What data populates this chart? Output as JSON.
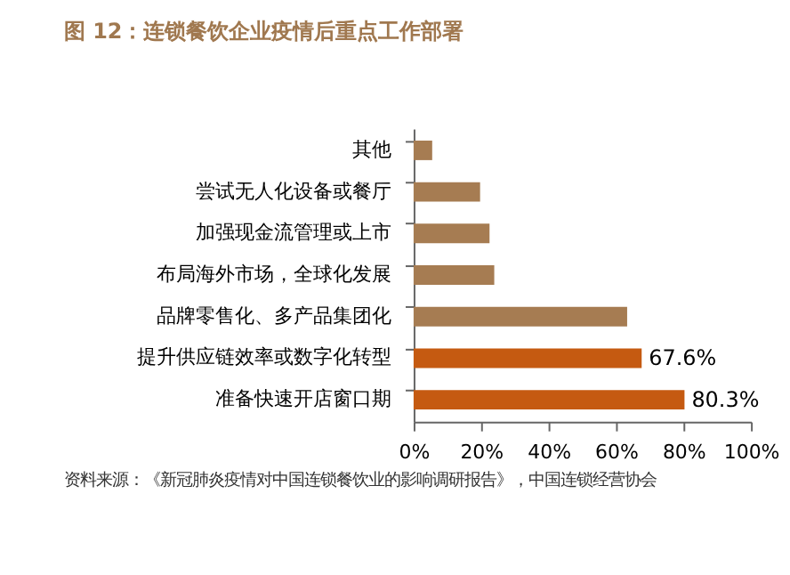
{
  "chart_data": {
    "type": "bar",
    "orientation": "horizontal",
    "title": "图 12：连锁餐饮企业疫情后重点工作部署",
    "categories": [
      "其他",
      "尝试无人化设备或餐厅",
      "加强现金流管理或上市",
      "布局海外市场，全球化发展",
      "品牌零售化、多产品集团化",
      "提升供应链效率或数字化转型",
      "准备快速开店窗口期"
    ],
    "values": [
      5.5,
      19.7,
      22.5,
      23.9,
      63.3,
      67.6,
      80.3
    ],
    "colors": [
      "#a67c52",
      "#a67c52",
      "#a67c52",
      "#a67c52",
      "#a67c52",
      "#c55a11",
      "#c55a11"
    ],
    "value_labels": [
      null,
      null,
      null,
      null,
      null,
      "67.6%",
      "80.3%"
    ],
    "xlim": [
      0,
      100
    ],
    "xticks": [
      {
        "value": 0,
        "label": "0%"
      },
      {
        "value": 20,
        "label": "20%"
      },
      {
        "value": 40,
        "label": "40%"
      },
      {
        "value": 60,
        "label": "60%"
      },
      {
        "value": 80,
        "label": "80%"
      },
      {
        "value": 100,
        "label": "100%"
      }
    ],
    "grid": false,
    "annotations": [
      "资料来源：《新冠肺炎疫情对中国连锁餐饮业的影响调研报告》，中国连锁经营协会"
    ]
  }
}
